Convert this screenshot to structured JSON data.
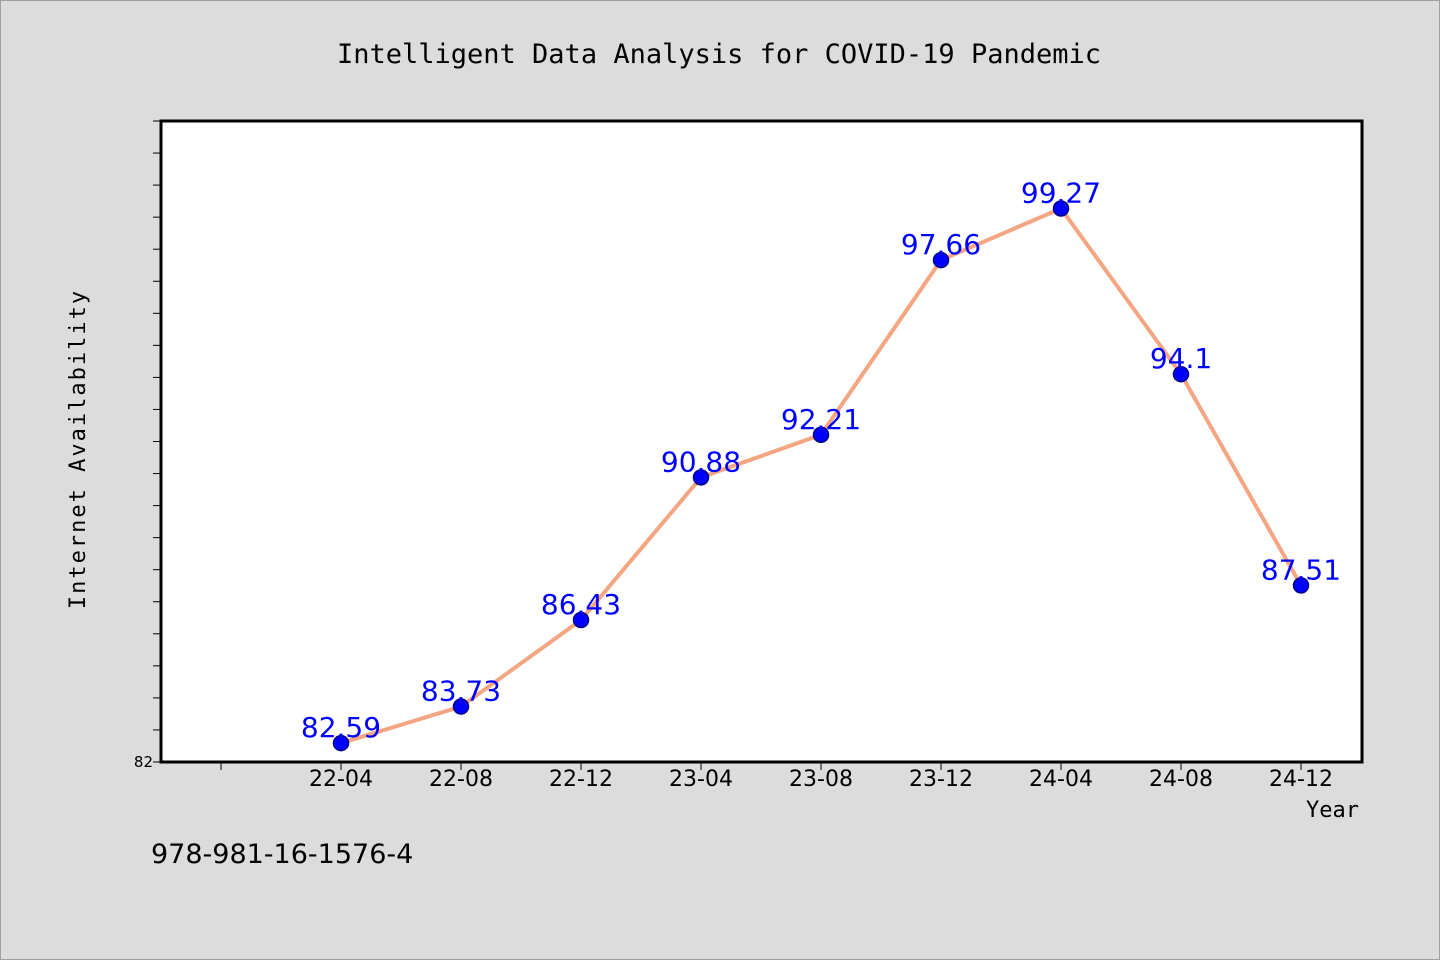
{
  "chart_data": {
    "type": "line",
    "title": "Intelligent Data Analysis for COVID-19 Pandemic",
    "xlabel": "Year",
    "ylabel": "Internet Availability",
    "categories": [
      "22-04",
      "22-08",
      "22-12",
      "23-04",
      "23-08",
      "23-12",
      "24-04",
      "24-08",
      "24-12"
    ],
    "series": [
      {
        "values": [
          82.59,
          83.73,
          86.43,
          90.88,
          92.21,
          97.66,
          99.27,
          94.1,
          87.51
        ]
      }
    ],
    "data_labels": [
      "82.59",
      "83.73",
      "86.43",
      "90.88",
      "92.21",
      "97.66",
      "99.27",
      "94.1",
      "87.51"
    ],
    "ylim": [
      82,
      102
    ],
    "y_tick_label": "82",
    "grid": false,
    "legend": "none",
    "colors": {
      "line": "#f4a582",
      "marker": "#0000ff",
      "marker_edge": "#000080",
      "data_label": "#0000ff",
      "background": "#dcdcdc",
      "plot_background": "#ffffff"
    }
  },
  "footer": {
    "isbn": "978-981-16-1576-4"
  }
}
